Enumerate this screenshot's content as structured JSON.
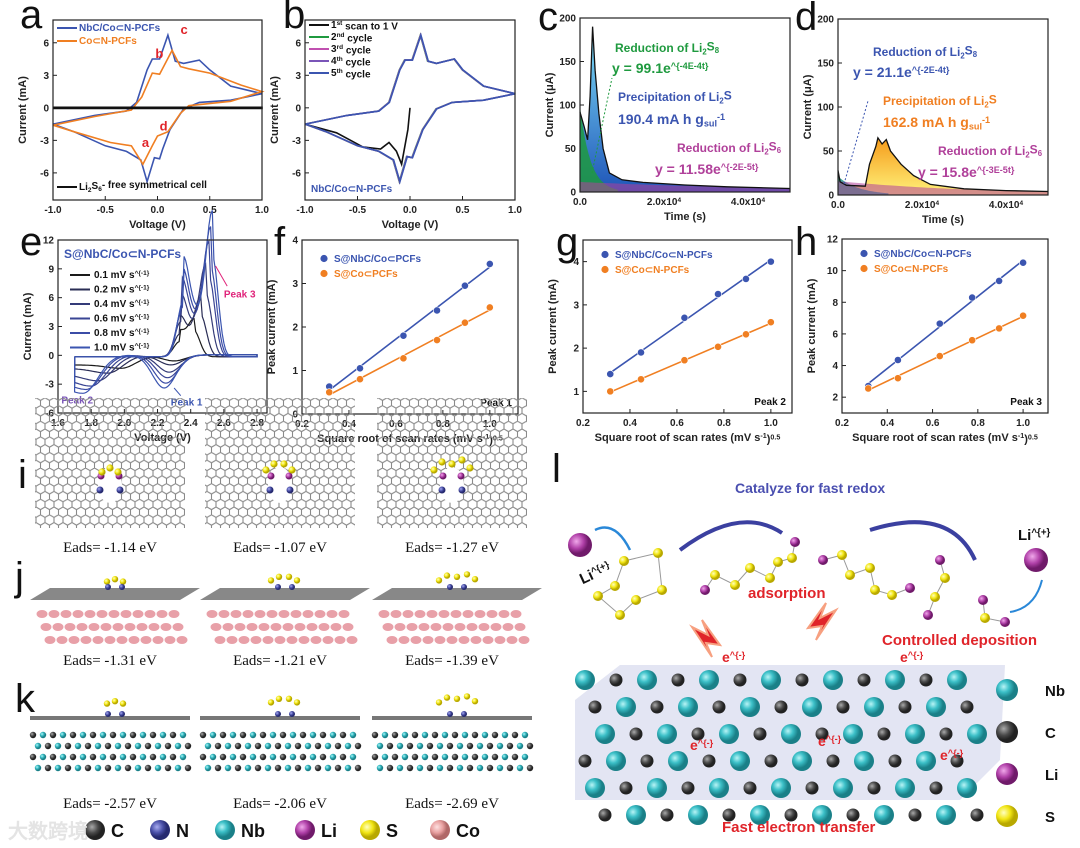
{
  "panel_labels": [
    "a",
    "b",
    "c",
    "d",
    "e",
    "f",
    "g",
    "h",
    "i",
    "j",
    "k",
    "l"
  ],
  "colors": {
    "blue": "#3b55b0",
    "orange": "#f07f22",
    "red": "#e0242a",
    "green": "#1f9a3f",
    "magenta": "#b0409a",
    "navy": "#4a4fb0",
    "cyan": "#3cc0c8",
    "carbon": "#555555",
    "li": "#b040a8",
    "s": "#f2e614",
    "n": "#4a50a8",
    "co": "#e8a0a0"
  },
  "chart_data": [
    {
      "panel": "a",
      "type": "line",
      "xlabel": "Voltage (V)",
      "ylabel": "Current (mA)",
      "xlim": [
        -1,
        1
      ],
      "ylim": [
        -8.5,
        8.1
      ],
      "xticks": [
        "-1.0",
        "-0.5",
        "0.0",
        "0.5",
        "1.0"
      ],
      "xtick_values": [
        -1,
        -0.5,
        0,
        0.5,
        1
      ],
      "yticks": [
        "-6",
        "-3",
        "0",
        "3",
        "6"
      ],
      "ytick_values": [
        -6,
        -3,
        0,
        3,
        6
      ],
      "series": [
        {
          "name": "NbC/Co⊂N-PCFs",
          "color": "#3b55b0",
          "points": [
            [
              -1,
              -1.5
            ],
            [
              -0.6,
              -0.7
            ],
            [
              -0.3,
              -0.3
            ],
            [
              -0.2,
              0.5
            ],
            [
              -0.1,
              3.5
            ],
            [
              -0.05,
              4.5
            ],
            [
              0.02,
              4.5
            ],
            [
              0.1,
              6.7
            ],
            [
              0.17,
              4.3
            ],
            [
              0.25,
              4.1
            ],
            [
              0.4,
              4.4
            ],
            [
              0.5,
              3.5
            ],
            [
              0.7,
              2.0
            ],
            [
              1,
              1.3
            ],
            [
              0.7,
              0.7
            ],
            [
              0.4,
              0.5
            ],
            [
              0.25,
              -0.1
            ],
            [
              0.12,
              -2
            ],
            [
              0.05,
              -3.8
            ],
            [
              0.02,
              -4.7
            ],
            [
              -0.03,
              -4.6
            ],
            [
              -0.1,
              -6.8
            ],
            [
              -0.16,
              -4.8
            ],
            [
              -0.3,
              -4
            ],
            [
              -0.5,
              -3.5
            ],
            [
              -0.8,
              -2.2
            ],
            [
              -1,
              -1.5
            ]
          ]
        },
        {
          "name": "Co⊂N-PCFs",
          "color": "#f07f22",
          "points": [
            [
              -1,
              -1.6
            ],
            [
              -0.6,
              -0.8
            ],
            [
              -0.25,
              -0.2
            ],
            [
              -0.15,
              1
            ],
            [
              -0.05,
              3.2
            ],
            [
              0.02,
              3.1
            ],
            [
              0.14,
              5.3
            ],
            [
              0.22,
              3.8
            ],
            [
              0.3,
              3.6
            ],
            [
              0.5,
              3.2
            ],
            [
              0.8,
              2.1
            ],
            [
              1,
              1.5
            ],
            [
              0.7,
              0.6
            ],
            [
              0.3,
              0.2
            ],
            [
              0.22,
              -0.5
            ],
            [
              0.1,
              -2.2
            ],
            [
              0.0,
              -2.6
            ],
            [
              -0.05,
              -3.5
            ],
            [
              -0.14,
              -5.2
            ],
            [
              -0.25,
              -3.5
            ],
            [
              -0.45,
              -3.2
            ],
            [
              -0.8,
              -2.2
            ],
            [
              -1,
              -1.6
            ]
          ]
        },
        {
          "name": "Li_{2}S_{6}- free symmetrical cell",
          "color": "#111111",
          "points": [
            [
              -1,
              0.05
            ],
            [
              1,
              0.05
            ],
            [
              1,
              -0.05
            ],
            [
              -1,
              -0.05
            ]
          ]
        }
      ],
      "annotations": [
        "b",
        "c",
        "a",
        "d"
      ]
    },
    {
      "panel": "b",
      "type": "line",
      "xlabel": "Voltage (V)",
      "ylabel": "Current (mA)",
      "xlim": [
        -1,
        1
      ],
      "ylim": [
        -8.5,
        8.1
      ],
      "xticks": [
        "-1.0",
        "-0.5",
        "0.0",
        "0.5",
        "1.0"
      ],
      "xtick_values": [
        -1,
        -0.5,
        0,
        0.5,
        1
      ],
      "yticks": [
        "-6",
        "-3",
        "0",
        "3",
        "6"
      ],
      "ytick_values": [
        -6,
        -3,
        0,
        3,
        6
      ],
      "series": [
        {
          "name": "1^{st} scan to 1 V",
          "color": "#111111",
          "points": [
            [
              0,
              0
            ],
            [
              -0.02,
              -2
            ],
            [
              -0.08,
              -5.2
            ],
            [
              -0.13,
              -4
            ],
            [
              -0.2,
              -3.2
            ],
            [
              -0.28,
              -3.8
            ],
            [
              -0.45,
              -3.6
            ],
            [
              -0.7,
              -2.3
            ],
            [
              -1,
              -1.5
            ]
          ]
        },
        {
          "name": "2^{nd} cycle",
          "color": "#1f9a3f",
          "points": "cycle"
        },
        {
          "name": "3^{rd} cycle",
          "color": "#c050b0",
          "points": "cycle"
        },
        {
          "name": "4^{th} cycle",
          "color": "#7a55b8",
          "points": "cycle"
        },
        {
          "name": "5^{th} cycle",
          "color": "#3b55b0",
          "points": "cycle"
        }
      ],
      "cycle_points": [
        [
          -1,
          -1.5
        ],
        [
          -0.6,
          -0.7
        ],
        [
          -0.3,
          -0.3
        ],
        [
          -0.2,
          0.5
        ],
        [
          -0.1,
          3.5
        ],
        [
          -0.05,
          4.4
        ],
        [
          0.02,
          4.4
        ],
        [
          0.1,
          6.7
        ],
        [
          0.17,
          4.3
        ],
        [
          0.25,
          4.1
        ],
        [
          0.42,
          4.5
        ],
        [
          0.5,
          3.5
        ],
        [
          0.7,
          2.0
        ],
        [
          1,
          1.3
        ],
        [
          0.7,
          0.7
        ],
        [
          0.4,
          0.5
        ],
        [
          0.25,
          -0.1
        ],
        [
          0.12,
          -2
        ],
        [
          0.05,
          -3.8
        ],
        [
          0.02,
          -4.6
        ],
        [
          -0.03,
          -4.5
        ],
        [
          -0.1,
          -6.8
        ],
        [
          -0.16,
          -4.8
        ],
        [
          -0.3,
          -4
        ],
        [
          -0.5,
          -3.5
        ],
        [
          -0.8,
          -2.2
        ],
        [
          -1,
          -1.5
        ]
      ],
      "inset_label": "NbC/Co⊂N-PCFs"
    },
    {
      "panel": "c",
      "type": "area",
      "xlabel": "Time (s)",
      "ylabel": "Current (μA)",
      "xlim": [
        0,
        50000
      ],
      "ylim": [
        0,
        200
      ],
      "xticks": [
        "0.0",
        "2.0x10^{4}",
        "4.0x10^{4}"
      ],
      "xtick_values": [
        0,
        20000,
        40000
      ],
      "yticks": [
        "0",
        "50",
        "100",
        "150",
        "200"
      ],
      "ytick_values": [
        0,
        50,
        100,
        150,
        200
      ],
      "total": [
        [
          0,
          92
        ],
        [
          1000,
          75
        ],
        [
          1800,
          60
        ],
        [
          2400,
          110
        ],
        [
          3000,
          190
        ],
        [
          3600,
          140
        ],
        [
          4500,
          90
        ],
        [
          5500,
          50
        ],
        [
          7000,
          22
        ],
        [
          10000,
          14
        ],
        [
          15000,
          11
        ],
        [
          25000,
          8
        ],
        [
          35000,
          6
        ],
        [
          50000,
          4
        ]
      ],
      "fit1": {
        "a": 99.1,
        "k": 0.0004,
        "color": "#1f9a3f"
      },
      "fit2": {
        "a": 11.58,
        "k": 2e-05,
        "color": "#b0409a"
      },
      "fill": "#2e5cc0",
      "texts": {
        "r1": "Reduction of Li_{2}S_{8}",
        "e1": "y = 99.1e^{-4E-4t}",
        "p": "Precipitation of Li_{2}S",
        "cap": "190.4 mA h g_{sul}^{-1}",
        "r2": "Reduction of Li_{2}S_{6}",
        "e2": "y = 11.58e^{-2E-5t}"
      }
    },
    {
      "panel": "d",
      "type": "area",
      "xlabel": "Time (s)",
      "ylabel": "Current (μA)",
      "xlim": [
        0,
        50000
      ],
      "ylim": [
        0,
        200
      ],
      "xticks": [
        "0.0",
        "2.0x10^{4}",
        "4.0x10^{4}"
      ],
      "xtick_values": [
        0,
        20000,
        40000
      ],
      "yticks": [
        "0",
        "50",
        "100",
        "150",
        "200"
      ],
      "ytick_values": [
        0,
        50,
        100,
        150,
        200
      ],
      "total": [
        [
          0,
          28
        ],
        [
          500,
          15
        ],
        [
          2000,
          11
        ],
        [
          6500,
          10
        ],
        [
          7500,
          35
        ],
        [
          9000,
          55
        ],
        [
          9500,
          65
        ],
        [
          10500,
          58
        ],
        [
          11500,
          63
        ],
        [
          12500,
          50
        ],
        [
          15000,
          35
        ],
        [
          18000,
          22
        ],
        [
          22000,
          12
        ],
        [
          30000,
          7
        ],
        [
          40000,
          5
        ],
        [
          50000,
          4
        ]
      ],
      "fit1": {
        "a": 21.1,
        "k": 0.0002,
        "color": "#1a9a8a"
      },
      "fit2": {
        "a": 15.8,
        "k": 3e-05,
        "color": "#b0409a"
      },
      "fill": "#f5b028",
      "texts": {
        "r1": "Reduction of Li_{2}S_{8}",
        "e1": "y = 21.1e^{-2E-4t}",
        "p": "Precipitation of Li_{2}S",
        "cap": "162.8 mA h g_{sul}^{-1}",
        "r2": "Reduction of Li_{2}S_{6}",
        "e2": "y = 15.8e^{-3E-5t}"
      }
    },
    {
      "panel": "e",
      "type": "line",
      "xlabel": "Voltage (V)",
      "ylabel": "Current (mA)",
      "xlim": [
        1.6,
        2.86
      ],
      "ylim": [
        -6,
        12
      ],
      "xticks": [
        "1.6",
        "1.8",
        "2.0",
        "2.2",
        "2.4",
        "2.6",
        "2.8"
      ],
      "xtick_values": [
        1.6,
        1.8,
        2.0,
        2.2,
        2.4,
        2.6,
        2.8
      ],
      "yticks": [
        "-6",
        "-3",
        "0",
        "3",
        "6",
        "9",
        "12"
      ],
      "ytick_values": [
        -6,
        -3,
        0,
        3,
        6,
        9,
        12
      ],
      "title": "S@NbC/Co⊂N-PCFs",
      "rates": [
        "0.1 mV s^{-1}",
        "0.2 mV s^{-1}",
        "0.4 mV s^{-1}",
        "0.6 mV s^{-1}",
        "0.8 mV s^{-1}",
        "1.0 mV s^{-1}"
      ],
      "colors": [
        "#1a1a1a",
        "#2a2d55",
        "#343b78",
        "#3a4594",
        "#3b4ca6",
        "#3b55b0"
      ],
      "peak1_V": [
        2.3,
        2.28,
        2.27,
        2.26,
        2.25,
        2.24
      ],
      "peak1_I": [
        -0.63,
        -1.05,
        -1.8,
        -2.38,
        -2.95,
        -3.45
      ],
      "peak2_V": [
        1.98,
        1.9,
        1.84,
        1.8,
        1.77,
        1.75
      ],
      "peak2_I": [
        -1.4,
        -1.9,
        -2.7,
        -3.25,
        -3.6,
        -4.0
      ],
      "peak3_V": [
        2.42,
        2.46,
        2.49,
        2.51,
        2.52,
        2.53
      ],
      "peak3_I": [
        2.7,
        4.35,
        6.65,
        8.3,
        9.35,
        10.5
      ],
      "peak_labels": [
        "Peak 1",
        "Peak 2",
        "Peak 3"
      ]
    },
    {
      "panel": "f",
      "type": "scatter",
      "xlabel": "Square root of scan rates (mV s^{-1})^{0.5}",
      "ylabel": "Peak current (mA)",
      "xlim": [
        0.2,
        1.12
      ],
      "ylim": [
        0,
        4
      ],
      "xticks": [
        "0.2",
        "0.4",
        "0.6",
        "0.8",
        "1.0"
      ],
      "xtick_values": [
        0.2,
        0.4,
        0.6,
        0.8,
        1.0
      ],
      "yticks": [
        "0",
        "1",
        "2",
        "3",
        "4"
      ],
      "ytick_values": [
        0,
        1,
        2,
        3,
        4
      ],
      "x": [
        0.316,
        0.447,
        0.632,
        0.775,
        0.894,
        1.0
      ],
      "series": [
        {
          "name": "S@NbC/Co⊂PCFs",
          "color": "#3b55b0",
          "values": [
            0.63,
            1.05,
            1.8,
            2.38,
            2.95,
            3.45
          ]
        },
        {
          "name": "S@Co⊂PCFs",
          "color": "#f07f22",
          "values": [
            0.5,
            0.8,
            1.28,
            1.7,
            2.1,
            2.45
          ]
        }
      ],
      "note": "Peak 1"
    },
    {
      "panel": "g",
      "type": "scatter",
      "xlabel": "Square root of scan rates (mV s^{-1})^{0.5}",
      "ylabel": "Peak current (mA)",
      "xlim": [
        0.2,
        1.09
      ],
      "ylim": [
        0.5,
        4.5
      ],
      "xticks": [
        "0.2",
        "0.4",
        "0.6",
        "0.8",
        "1.0"
      ],
      "xtick_values": [
        0.2,
        0.4,
        0.6,
        0.8,
        1.0
      ],
      "yticks": [
        "1",
        "2",
        "3",
        "4"
      ],
      "ytick_values": [
        1,
        2,
        3,
        4
      ],
      "x": [
        0.316,
        0.447,
        0.632,
        0.775,
        0.894,
        1.0
      ],
      "series": [
        {
          "name": "S@NbC/Co⊂N-PCFs",
          "color": "#3b55b0",
          "values": [
            1.4,
            1.9,
            2.7,
            3.25,
            3.6,
            4.0
          ]
        },
        {
          "name": "S@Co⊂N-PCFs",
          "color": "#f07f22",
          "values": [
            1.0,
            1.28,
            1.72,
            2.03,
            2.32,
            2.6
          ]
        }
      ],
      "note": "Peak 2"
    },
    {
      "panel": "h",
      "type": "scatter",
      "xlabel": "Square root of scan rates (mV s^{-1})^{0.5}",
      "ylabel": "Peak current (mA)",
      "xlim": [
        0.2,
        1.11
      ],
      "ylim": [
        1,
        12
      ],
      "xticks": [
        "0.2",
        "0.4",
        "0.6",
        "0.8",
        "1.0"
      ],
      "xtick_values": [
        0.2,
        0.4,
        0.6,
        0.8,
        1.0
      ],
      "yticks": [
        "2",
        "4",
        "6",
        "8",
        "10",
        "12"
      ],
      "ytick_values": [
        2,
        4,
        6,
        8,
        10,
        12
      ],
      "x": [
        0.316,
        0.447,
        0.632,
        0.775,
        0.894,
        1.0
      ],
      "series": [
        {
          "name": "S@NbC/Co⊂N-PCFs",
          "color": "#3b55b0",
          "values": [
            2.7,
            4.35,
            6.65,
            8.3,
            9.35,
            10.5
          ]
        },
        {
          "name": "S@Co⊂N-PCFs",
          "color": "#f07f22",
          "values": [
            2.55,
            3.2,
            4.6,
            5.6,
            6.35,
            7.15
          ]
        }
      ],
      "note": "Peak 3"
    }
  ],
  "dft": {
    "i_eads": [
      "Eads= -1.14 eV",
      "Eads= -1.07 eV",
      "Eads= -1.27 eV"
    ],
    "j_eads": [
      "Eads= -1.31 eV",
      "Eads= -1.21 eV",
      "Eads= -1.39 eV"
    ],
    "k_eads": [
      "Eads= -2.57 eV",
      "Eads= -2.06 eV",
      "Eads= -2.69 eV"
    ],
    "legend": [
      "C",
      "N",
      "Nb",
      "Li",
      "S",
      "Co"
    ]
  },
  "schematic": {
    "title": "Catalyze for fast redox",
    "adsorption": "adsorption",
    "deposition": "Controlled deposition",
    "transfer": "Fast electron transfer",
    "li_ion": "Li^{+}",
    "electron": "e^{-}",
    "legend": [
      "Nb",
      "C",
      "Li",
      "S"
    ]
  },
  "watermark": "大数跨境"
}
